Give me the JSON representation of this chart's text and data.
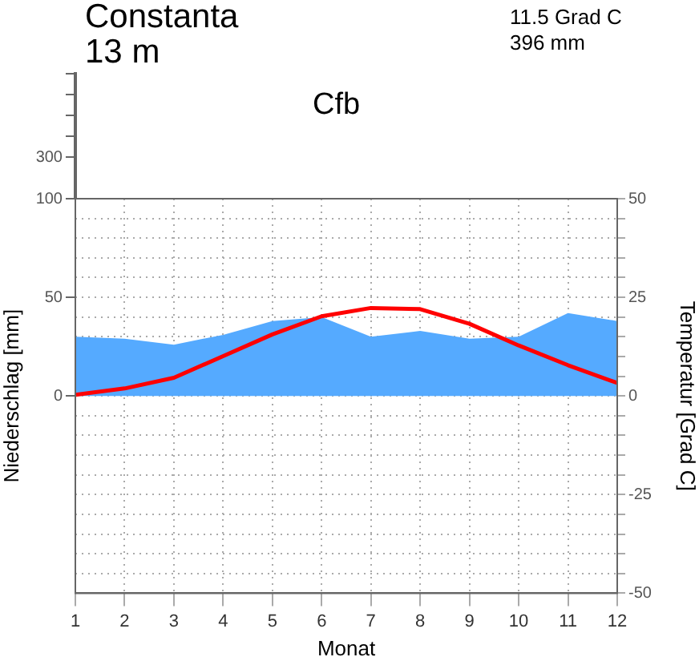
{
  "chart_data": {
    "type": "area",
    "title": "Constanta",
    "subtitle": "13 m",
    "xlabel": "Monat",
    "ylabel": "Niederschlag [mm]",
    "y2label": "Temperatur [Grad C]",
    "annotations": [
      "11.5 Grad C",
      "396 mm",
      "Cfb"
    ],
    "x": [
      1,
      2,
      3,
      4,
      5,
      6,
      7,
      8,
      9,
      10,
      11,
      12
    ],
    "series": [
      {
        "type": "area",
        "color": "#55aaff",
        "values": [
          30,
          29,
          26,
          31,
          38,
          40,
          30,
          33,
          29,
          30,
          42,
          38
        ]
      },
      {
        "type": "line",
        "axis": "y2",
        "color": "#ff0000",
        "values": [
          0.3,
          1.9,
          4.6,
          10.1,
          15.6,
          20.2,
          22.3,
          22,
          18.3,
          12.8,
          7.8,
          3.3
        ]
      }
    ],
    "xlim": [
      1,
      12
    ],
    "xticks": [
      1,
      2,
      3,
      4,
      5,
      6,
      7,
      8,
      9,
      10,
      11,
      12
    ],
    "ylim": [
      -100,
      100
    ],
    "yticks": [
      0,
      50,
      {
        "value": 100,
        "label": null
      }
    ],
    "y2lim": [
      -50,
      50
    ],
    "y2ticks": [
      -50,
      {
        "value": -45,
        "label": null
      },
      {
        "value": -40,
        "label": null
      },
      {
        "value": -35,
        "label": null
      },
      {
        "value": -30,
        "label": null
      },
      -25,
      {
        "value": -20,
        "label": null
      },
      {
        "value": -15,
        "label": null
      },
      {
        "value": -10,
        "label": null
      },
      {
        "value": -5,
        "label": null
      },
      0,
      {
        "value": 5,
        "label": null
      },
      {
        "value": 10,
        "label": null
      },
      {
        "value": 15,
        "label": null
      },
      {
        "value": 20,
        "label": null
      },
      25,
      {
        "value": 30,
        "label": null
      },
      {
        "value": 35,
        "label": null
      },
      {
        "value": 40,
        "label": null
      },
      {
        "value": 45,
        "label": null
      },
      50
    ],
    "y3lim": [
      100,
      700
    ],
    "y3ticks": [
      100,
      300,
      {
        "value": 400,
        "label": null
      },
      {
        "value": 500,
        "label": null
      },
      {
        "value": 600,
        "label": null
      },
      {
        "value": 700,
        "label": null
      }
    ],
    "grid": true
  }
}
